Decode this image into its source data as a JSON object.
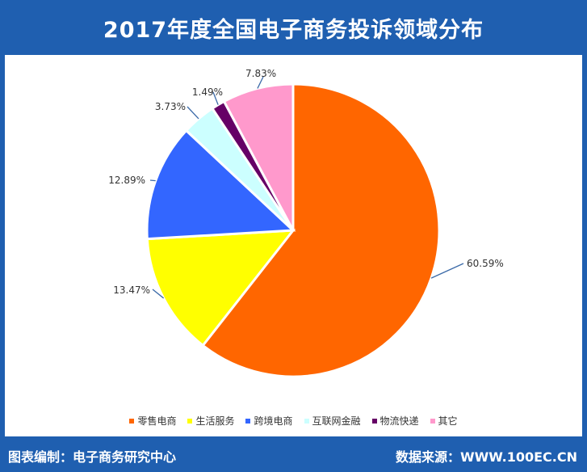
{
  "header": {
    "title": "2017年度全国电子商务投诉领域分布"
  },
  "footer": {
    "left": "图表编制：电子商务研究中心",
    "right": "数据来源：WWW.100EC.CN"
  },
  "colors": {
    "brand": "#1f5fb0"
  },
  "chart_data": {
    "type": "pie",
    "title": "",
    "categories": [
      "零售电商",
      "生活服务",
      "跨境电商",
      "互联网金融",
      "物流快递",
      "其它"
    ],
    "values": [
      60.59,
      13.47,
      12.89,
      3.73,
      1.49,
      7.83
    ],
    "labels": [
      "60.59%",
      "13.47%",
      "12.89%",
      "3.73%",
      "1.49%",
      "7.83%"
    ],
    "colors": [
      "#ff6600",
      "#ffff00",
      "#3366ff",
      "#ccffff",
      "#660066",
      "#ff99cc"
    ],
    "legend_position": "bottom"
  }
}
